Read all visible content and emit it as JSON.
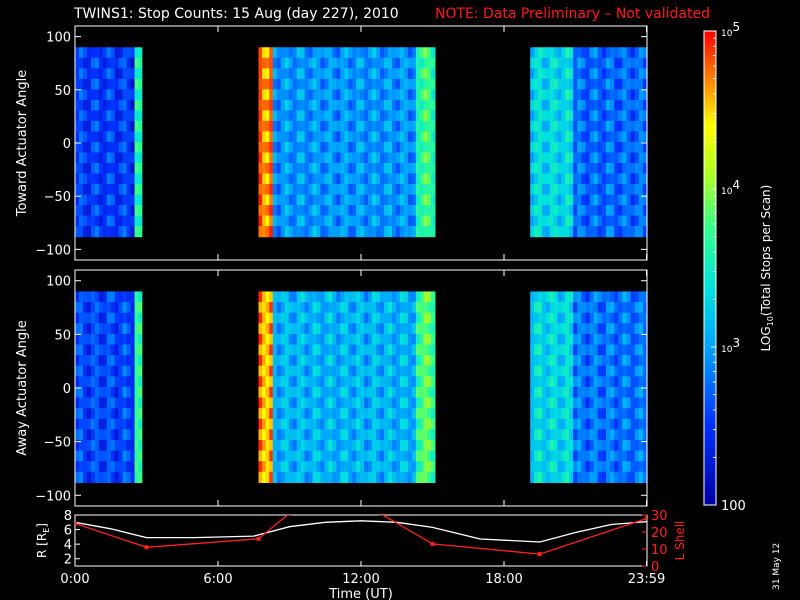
{
  "title": "TWINS1: Stop Counts: 15 Aug (day 227), 2010",
  "note": "NOTE: Data Preliminary – Not validated",
  "stamp": "31 May 12",
  "colors": {
    "note": "#ff1a1a",
    "axes": "#ffffff",
    "background": "#000000",
    "lshell": "#ff2020",
    "radius": "#ffffff"
  },
  "chart_data": [
    {
      "type": "heatmap",
      "name": "toward",
      "ylabel": "Toward Actuator Angle",
      "xlabel": "",
      "xlim": [
        0,
        24
      ],
      "ylim": [
        -110,
        110
      ],
      "yticks": [
        "100",
        "50",
        "0",
        "−50",
        "−100"
      ],
      "yticks_values": [
        100,
        50,
        0,
        -50,
        -100
      ],
      "angle_range": [
        -88,
        90
      ],
      "data_gaps_ut": [
        [
          2.8,
          7.7
        ],
        [
          15.1,
          19.1
        ]
      ],
      "segments": [
        {
          "x": [
            0.0,
            2.5
          ],
          "log_counts": 2.55,
          "note": "blue"
        },
        {
          "x": [
            2.5,
            2.8
          ],
          "log_counts": 3.5
        },
        {
          "x": [
            7.7,
            8.3
          ],
          "log_counts": 4.7
        },
        {
          "x": [
            8.3,
            14.3
          ],
          "log_counts": 2.95
        },
        {
          "x": [
            14.3,
            15.1
          ],
          "log_counts": 3.7
        },
        {
          "x": [
            19.1,
            20.9
          ],
          "log_counts": 3.3
        },
        {
          "x": [
            20.9,
            24.0
          ],
          "log_counts": 2.75
        }
      ]
    },
    {
      "type": "heatmap",
      "name": "away",
      "ylabel": "Away Actuator Angle",
      "xlabel": "",
      "xlim": [
        0,
        24
      ],
      "ylim": [
        -110,
        110
      ],
      "yticks": [
        "100",
        "50",
        "0",
        "−50",
        "−100"
      ],
      "yticks_values": [
        100,
        50,
        0,
        -50,
        -100
      ],
      "angle_range": [
        -88,
        90
      ],
      "data_gaps_ut": [
        [
          2.8,
          7.7
        ],
        [
          15.1,
          19.1
        ]
      ],
      "segments": [
        {
          "x": [
            0.0,
            2.5
          ],
          "log_counts": 2.6
        },
        {
          "x": [
            2.5,
            2.8
          ],
          "log_counts": 3.6
        },
        {
          "x": [
            7.7,
            8.3
          ],
          "log_counts": 4.6
        },
        {
          "x": [
            8.3,
            14.3
          ],
          "log_counts": 3.1
        },
        {
          "x": [
            14.3,
            15.1
          ],
          "log_counts": 3.8
        },
        {
          "x": [
            19.1,
            20.9
          ],
          "log_counts": 3.3
        },
        {
          "x": [
            20.9,
            24.0
          ],
          "log_counts": 2.8
        }
      ]
    },
    {
      "type": "line",
      "name": "orbit",
      "xlabel": "Time (UT)",
      "ylabel_left": "R [R",
      "ylabel_left_sub": "E",
      "ylabel_left_end": "]",
      "ylabel_right": "L Shell",
      "xlim": [
        0,
        24
      ],
      "xticks": [
        "0:00",
        "6:00",
        "12:00",
        "18:00",
        "23:59"
      ],
      "xticks_values": [
        0,
        6,
        12,
        18,
        23.98
      ],
      "ylim_left": [
        1,
        8
      ],
      "yticks_left": [
        "2",
        "4",
        "6",
        "8"
      ],
      "yticks_left_values": [
        2,
        4,
        6,
        8
      ],
      "ylim_right": [
        0,
        30
      ],
      "yticks_right": [
        "0",
        "10",
        "20",
        "30"
      ],
      "yticks_right_values": [
        0,
        10,
        20,
        30
      ],
      "series": [
        {
          "name": "R",
          "axis": "left",
          "x": [
            0,
            1.5,
            3,
            5,
            7.5,
            9,
            10.5,
            12,
            13.5,
            15,
            17,
            19.5,
            21,
            22.5,
            24
          ],
          "y": [
            7.0,
            6.1,
            4.9,
            4.9,
            5.1,
            6.4,
            7.0,
            7.2,
            7.0,
            6.3,
            4.7,
            4.3,
            5.6,
            6.7,
            7.1
          ]
        },
        {
          "name": "L Shell",
          "axis": "right",
          "x": [
            0,
            3,
            7.7,
            9.0,
            12.8,
            15.0,
            19.5,
            24
          ],
          "y": [
            25,
            11,
            16,
            31,
            31,
            13,
            7,
            28
          ]
        }
      ]
    }
  ],
  "colorbar": {
    "label": "LOG10(Total Stops per Scan)",
    "label_main": "LOG",
    "label_sub": "10",
    "label_rest": "(Total Stops per Scan)",
    "ticks": [
      {
        "value": 5,
        "base": "10",
        "exp": "5"
      },
      {
        "value": 4,
        "base": "10",
        "exp": "4"
      },
      {
        "value": 3,
        "base": "10",
        "exp": "3"
      },
      {
        "value": 2,
        "base": "100",
        "exp": ""
      }
    ],
    "range": [
      2,
      5
    ]
  }
}
